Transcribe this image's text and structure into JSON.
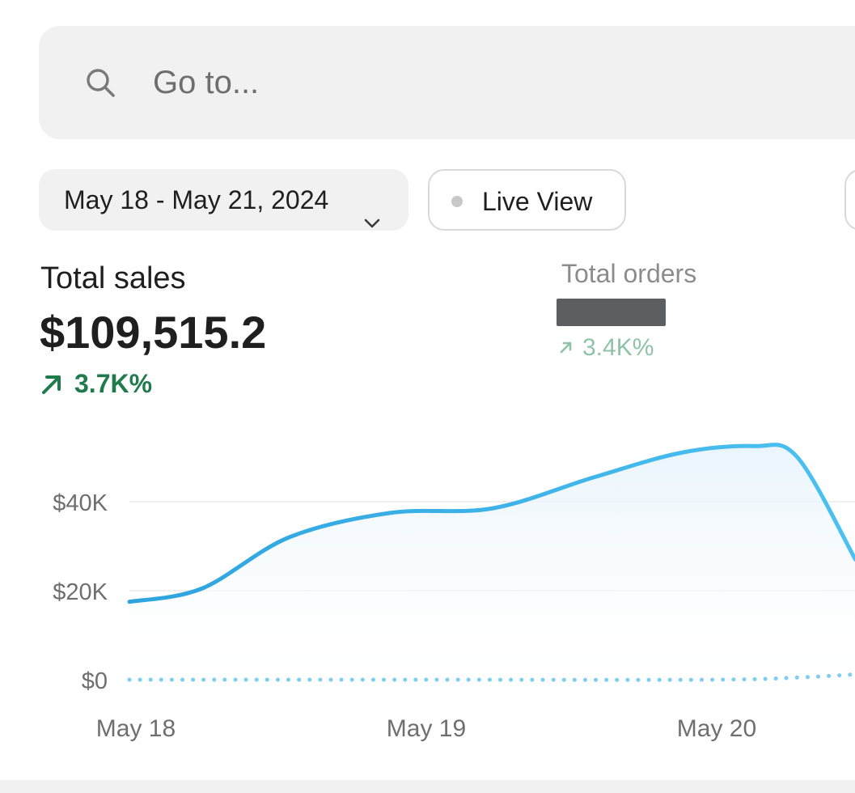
{
  "search": {
    "placeholder": "Go to..."
  },
  "filters": {
    "date_range": "May 18 - May 21, 2024",
    "live_view": "Live View"
  },
  "metrics": {
    "total_sales": {
      "label": "Total sales",
      "value": "$109,515.2",
      "change": "3.7K%"
    },
    "total_orders": {
      "label": "Total orders",
      "change": "3.4K%"
    }
  },
  "colors": {
    "accent_line": "#3db5ec",
    "positive": "#1f7a4c",
    "positive_muted": "#8fc2a7"
  },
  "chart_data": {
    "type": "area",
    "x": [
      "May 18",
      "May 18.5",
      "May 19",
      "May 19.5",
      "May 20",
      "May 20.5"
    ],
    "categories_labels": [
      "May 18",
      "May 19",
      "May 20"
    ],
    "y_ticks": [
      "$0",
      "$20K",
      "$40K"
    ],
    "ylim": [
      0,
      52000
    ],
    "series": [
      {
        "style": "solid",
        "points": [
          [
            0,
            17500
          ],
          [
            0.25,
            20500
          ],
          [
            0.55,
            32000
          ],
          [
            0.9,
            37500
          ],
          [
            1.25,
            38500
          ],
          [
            1.6,
            45500
          ],
          [
            1.9,
            51000
          ],
          [
            2.15,
            52500
          ],
          [
            2.3,
            50000
          ],
          [
            2.5,
            27000
          ]
        ]
      },
      {
        "style": "dotted",
        "points": [
          [
            0,
            0
          ],
          [
            1,
            0
          ],
          [
            2,
            0
          ],
          [
            2.3,
            500
          ],
          [
            2.5,
            1200
          ]
        ]
      }
    ]
  }
}
